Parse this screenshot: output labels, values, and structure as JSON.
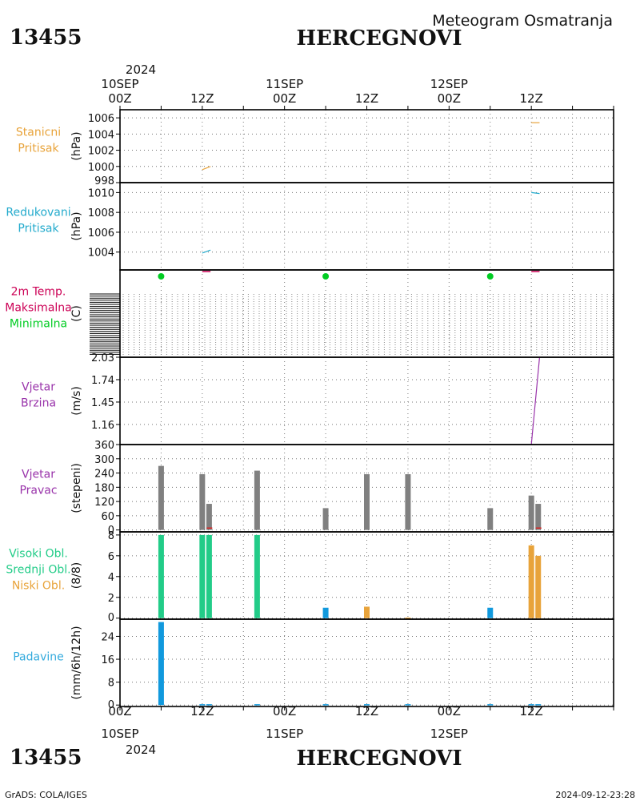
{
  "header": {
    "station_id": "13455",
    "station_name": "HERCEGNOVI",
    "subtitle": "Meteogram Osmatranja"
  },
  "footer": {
    "credit": "GrADS: COLA/IGES",
    "timestamp": "2024-09-12-23:28"
  },
  "time_axis": {
    "year": "2024",
    "ticks": [
      {
        "label": "00Z",
        "date": "10SEP",
        "h": 0
      },
      {
        "label": "12Z",
        "date": "",
        "h": 12
      },
      {
        "label": "00Z",
        "date": "11SEP",
        "h": 24
      },
      {
        "label": "12Z",
        "date": "",
        "h": 36
      },
      {
        "label": "00Z",
        "date": "12SEP",
        "h": 48
      },
      {
        "label": "12Z",
        "date": "",
        "h": 60
      }
    ]
  },
  "colors": {
    "orange": "#e8a33a",
    "cyan": "#22aacc",
    "magenta": "#cc0055",
    "green": "#00cc22",
    "purple": "#9933aa",
    "gray": "#808080",
    "red": "#dd2222",
    "teal": "#22cc88",
    "blue": "#1199dd",
    "sky": "#33aadd"
  },
  "chart_data": [
    {
      "id": "station-pressure",
      "type": "line",
      "labels": [
        "Stanicni",
        "Pritisak"
      ],
      "ylabel": "(hPa)",
      "ylim": [
        998,
        1007
      ],
      "yticks": [
        998,
        1000,
        1002,
        1004,
        1006
      ],
      "series": [
        {
          "color_key": "orange",
          "points": [
            [
              12.0,
              999.6
            ],
            [
              13.2,
              1000.0
            ]
          ]
        },
        {
          "color_key": "orange",
          "points": [
            [
              60.0,
              1005.4
            ],
            [
              61.2,
              1005.4
            ]
          ]
        }
      ]
    },
    {
      "id": "reduced-pressure",
      "type": "line",
      "labels": [
        "Redukovani",
        "Pritisak"
      ],
      "ylabel": "(hPa)",
      "ylim": [
        1002.2,
        1011.0
      ],
      "yticks": [
        1004,
        1006,
        1008,
        1010
      ],
      "series": [
        {
          "color_key": "cyan",
          "points": [
            [
              12.0,
              1003.9
            ],
            [
              13.2,
              1004.2
            ]
          ]
        },
        {
          "color_key": "cyan",
          "points": [
            [
              60.0,
              1010.0
            ],
            [
              61.2,
              1009.9
            ]
          ]
        }
      ]
    },
    {
      "id": "temperature",
      "type": "line",
      "labels": [
        "2m Temp.",
        "Maksimalna",
        "Minimalna"
      ],
      "ylabel": "(C)",
      "min_points": [
        [
          6,
          "green"
        ],
        [
          30,
          "green"
        ],
        [
          54,
          "green"
        ]
      ],
      "max_segments": [
        [
          12.0,
          13.2
        ],
        [
          60.0,
          61.2
        ]
      ]
    },
    {
      "id": "wind-speed",
      "type": "line",
      "labels": [
        "Vjetar",
        "Brzina"
      ],
      "ylabel": "(m/s)",
      "ylim": [
        0.9,
        2.03
      ],
      "yticks": [
        1.16,
        1.45,
        1.74,
        2.03
      ],
      "series": [
        {
          "color_key": "purple",
          "points": [
            [
              12.0,
              0.9
            ],
            [
              13.2,
              0.9
            ]
          ]
        },
        {
          "color_key": "purple",
          "points": [
            [
              60.0,
              0.9
            ],
            [
              61.2,
              2.03
            ]
          ]
        }
      ]
    },
    {
      "id": "wind-direction",
      "type": "bar",
      "labels": [
        "Vjetar",
        "Pravac"
      ],
      "ylabel": "(stepeni)",
      "ylim": [
        -8,
        360
      ],
      "yticks": [
        0,
        60,
        120,
        180,
        240,
        300,
        360
      ],
      "bars": [
        {
          "h": 6,
          "v": 270
        },
        {
          "h": 12,
          "v": 235
        },
        {
          "h": 13,
          "v": 110
        },
        {
          "h": 20,
          "v": 250
        },
        {
          "h": 30,
          "v": 92
        },
        {
          "h": 36,
          "v": 235
        },
        {
          "h": 42,
          "v": 235
        },
        {
          "h": 54,
          "v": 92
        },
        {
          "h": 60,
          "v": 145
        },
        {
          "h": 61,
          "v": 110
        }
      ],
      "marks": [
        [
          13.0,
          8
        ],
        [
          61.0,
          8
        ]
      ]
    },
    {
      "id": "clouds",
      "type": "bar",
      "labels": [
        "Visoki Obl.",
        "Srednji Obl.",
        "Niski Obl."
      ],
      "ylabel": "(8/8)",
      "ylim": [
        -0.1,
        8.3
      ],
      "yticks": [
        0,
        2,
        4,
        6,
        8
      ],
      "bars": [
        {
          "h": 6,
          "v": 8,
          "color_key": "teal"
        },
        {
          "h": 12,
          "v": 8,
          "color_key": "teal"
        },
        {
          "h": 13,
          "v": 8,
          "color_key": "teal"
        },
        {
          "h": 20,
          "v": 8,
          "color_key": "teal"
        },
        {
          "h": 30,
          "v": 1,
          "color_key": "blue"
        },
        {
          "h": 36,
          "v": 1.1,
          "color_key": "orange"
        },
        {
          "h": 42,
          "v": 0.05,
          "color_key": "orange"
        },
        {
          "h": 54,
          "v": 1,
          "color_key": "blue"
        },
        {
          "h": 60,
          "v": 7,
          "color_key": "orange"
        },
        {
          "h": 61,
          "v": 6,
          "color_key": "orange"
        }
      ]
    },
    {
      "id": "precipitation",
      "type": "bar",
      "labels": [
        "Padavine"
      ],
      "ylabel": "(mm/6h/12h)",
      "ylim": [
        -0.5,
        30
      ],
      "yticks": [
        0,
        8,
        16,
        24
      ],
      "bars": [
        {
          "h": 6,
          "v": 29
        },
        {
          "h": 12,
          "v": 0.3
        },
        {
          "h": 13,
          "v": 0.3
        },
        {
          "h": 20,
          "v": 0.3
        },
        {
          "h": 30,
          "v": 0.3
        },
        {
          "h": 36,
          "v": 0.3
        },
        {
          "h": 42,
          "v": 0.3
        },
        {
          "h": 54,
          "v": 0.3
        },
        {
          "h": 60,
          "v": 0.3
        },
        {
          "h": 61,
          "v": 0.3
        }
      ]
    }
  ]
}
